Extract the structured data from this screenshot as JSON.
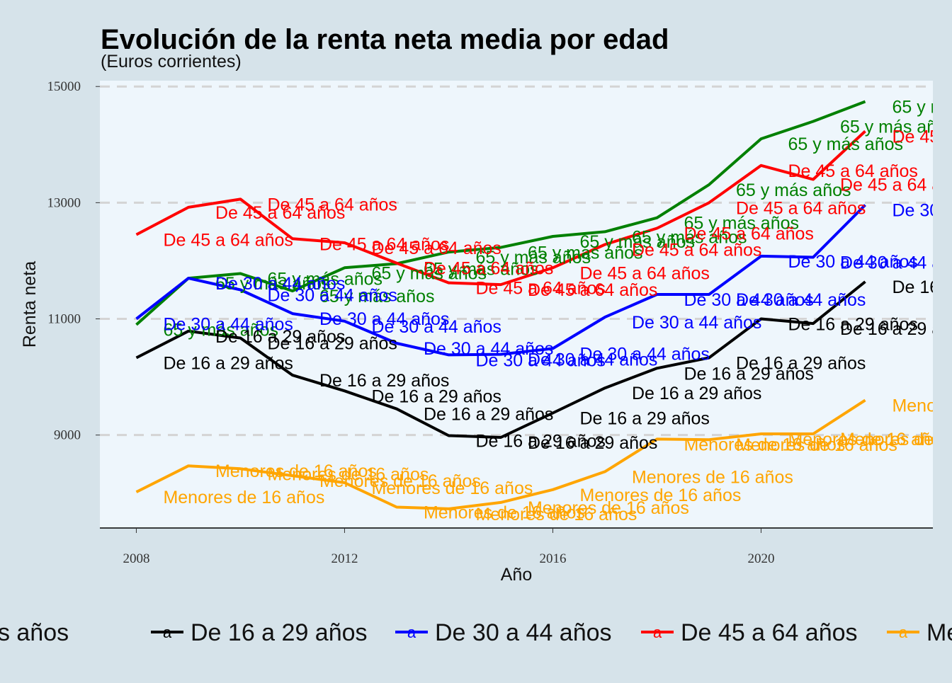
{
  "chart_data": {
    "type": "line",
    "title": "Evolución de la renta neta media por edad",
    "subtitle": "(Euros corrientes)",
    "xlabel": "Año",
    "ylabel": "Renta neta",
    "xlim": [
      2007.3,
      2023.3
    ],
    "ylim": [
      7400,
      15100
    ],
    "xticks": [
      2008,
      2012,
      2016,
      2020
    ],
    "yticks": [
      9000,
      11000,
      13000,
      15000
    ],
    "grid": "horizontal dashed",
    "legend_position": "bottom",
    "x": [
      2008,
      2009,
      2010,
      2011,
      2012,
      2013,
      2014,
      2015,
      2016,
      2017,
      2018,
      2019,
      2020,
      2021,
      2022
    ],
    "series": [
      {
        "name": "65 y más años",
        "color": "#008000",
        "values": [
          10900,
          11700,
          11780,
          11480,
          11880,
          11950,
          12150,
          12230,
          12420,
          12500,
          12740,
          13310,
          14100,
          14400,
          14740
        ],
        "label_text": "65 y más años"
      },
      {
        "name": "De 16 a 29 años",
        "color": "#000000",
        "values": [
          10330,
          10790,
          10670,
          10030,
          9760,
          9450,
          8990,
          8960,
          9380,
          9810,
          10150,
          10330,
          11000,
          10920,
          11640
        ],
        "label_text": "De 16 a 29 años"
      },
      {
        "name": "De 30 a 44 años",
        "color": "#0000ff",
        "values": [
          11000,
          11700,
          11500,
          11090,
          10960,
          10580,
          10380,
          10390,
          10490,
          11030,
          11420,
          11420,
          12080,
          12060,
          12960
        ],
        "label_text": "De 30 a 44 años"
      },
      {
        "name": "De 45 a 64 años",
        "color": "#ff0000",
        "values": [
          12450,
          12920,
          13060,
          12380,
          12310,
          11960,
          11620,
          11590,
          11880,
          12280,
          12560,
          13000,
          13640,
          13400,
          14230
        ],
        "label_text": "De 45 a 64 años"
      },
      {
        "name": "Menores de 16 años",
        "color": "#ffa500",
        "values": [
          8020,
          8470,
          8420,
          8300,
          8180,
          7760,
          7730,
          7840,
          8060,
          8370,
          8930,
          8920,
          9020,
          9020,
          9600
        ],
        "label_text": "Menores de 16 años"
      }
    ],
    "legend_symbol": "a"
  }
}
